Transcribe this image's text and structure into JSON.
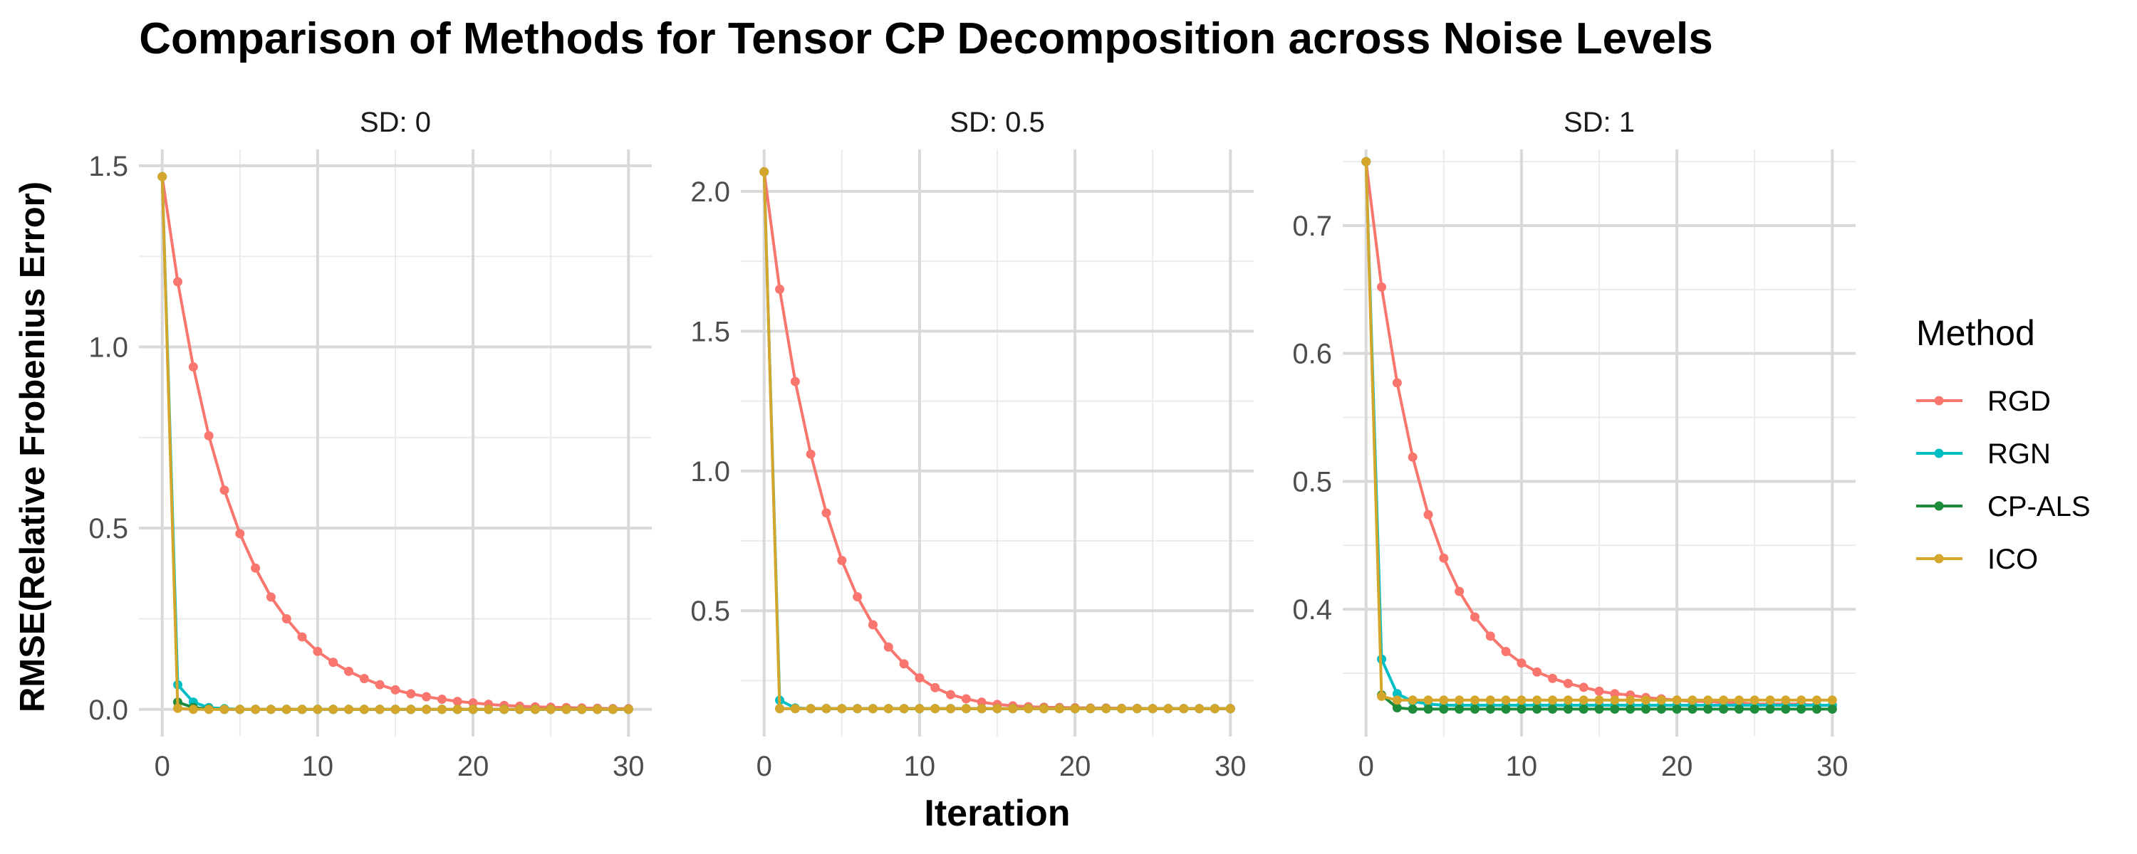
{
  "title": "Comparison of Methods for Tensor CP Decomposition across Noise Levels",
  "xlabel": "Iteration",
  "ylabel": "RMSE(Relative Frobenius Error)",
  "legend": {
    "title": "Method",
    "position": "right",
    "items": [
      {
        "name": "RGD",
        "color": "#F8766D"
      },
      {
        "name": "RGN",
        "color": "#00BFC4"
      },
      {
        "name": "CP-ALS",
        "color": "#1E8C3A"
      },
      {
        "name": "ICO",
        "color": "#D4A72C"
      }
    ]
  },
  "chart_data": [
    {
      "type": "line",
      "title": "SD: 0",
      "xlabel": "Iteration",
      "ylabel": "RMSE(Relative Frobenius Error)",
      "xlim": [
        -1.5,
        31.5
      ],
      "ylim": [
        -0.075,
        1.545
      ],
      "x_ticks": [
        0,
        10,
        20,
        30
      ],
      "x_tick_labels": [
        "0",
        "10",
        "20",
        "30"
      ],
      "y_ticks": [
        0,
        0.5,
        1,
        1.5
      ],
      "y_tick_labels": [
        "0.0",
        "0.5",
        "1.0",
        "1.5"
      ],
      "grid": true,
      "series": [
        {
          "name": "RGD",
          "x": [
            0,
            1,
            2,
            3,
            4,
            5,
            6,
            7,
            8,
            9,
            10,
            11,
            12,
            13,
            14,
            15,
            16,
            17,
            18,
            19,
            20,
            21,
            22,
            23,
            24,
            25,
            26,
            27,
            28,
            29,
            30
          ],
          "values": [
            1.47,
            1.18,
            0.945,
            0.755,
            0.605,
            0.485,
            0.39,
            0.31,
            0.25,
            0.2,
            0.16,
            0.13,
            0.105,
            0.085,
            0.068,
            0.054,
            0.043,
            0.035,
            0.028,
            0.022,
            0.018,
            0.014,
            0.011,
            0.009,
            0.007,
            0.006,
            0.005,
            0.004,
            0.003,
            0.002,
            0.002
          ]
        },
        {
          "name": "RGN",
          "x": [
            0,
            1,
            2,
            3,
            4,
            5,
            6,
            7,
            8,
            9,
            10,
            11,
            12,
            13,
            14,
            15,
            16,
            17,
            18,
            19,
            20,
            21,
            22,
            23,
            24,
            25,
            26,
            27,
            28,
            29,
            30
          ],
          "values": [
            1.47,
            0.068,
            0.02,
            0.005,
            0.002,
            0,
            0,
            0,
            0,
            0,
            0,
            0,
            0,
            0,
            0,
            0,
            0,
            0,
            0,
            0,
            0,
            0,
            0,
            0,
            0,
            0,
            0,
            0,
            0,
            0,
            0
          ]
        },
        {
          "name": "CP-ALS",
          "x": [
            1,
            2,
            3,
            4,
            5,
            6,
            7,
            8,
            9,
            10,
            11,
            12,
            13,
            14,
            15,
            16,
            17,
            18,
            19,
            20,
            21,
            22,
            23,
            24,
            25,
            26,
            27,
            28,
            29,
            30
          ],
          "values": [
            0.02,
            0.005,
            0.001,
            0,
            0,
            0,
            0,
            0,
            0,
            0,
            0,
            0,
            0,
            0,
            0,
            0,
            0,
            0,
            0,
            0,
            0,
            0,
            0,
            0,
            0,
            0,
            0,
            0,
            0,
            0
          ]
        },
        {
          "name": "ICO",
          "x": [
            0,
            1,
            2,
            3,
            4,
            5,
            6,
            7,
            8,
            9,
            10,
            11,
            12,
            13,
            14,
            15,
            16,
            17,
            18,
            19,
            20,
            21,
            22,
            23,
            24,
            25,
            26,
            27,
            28,
            29,
            30
          ],
          "values": [
            1.47,
            0.003,
            0,
            0,
            0,
            0,
            0,
            0,
            0,
            0,
            0,
            0,
            0,
            0,
            0,
            0,
            0,
            0,
            0,
            0,
            0,
            0,
            0,
            0,
            0,
            0,
            0,
            0,
            0,
            0,
            0
          ]
        }
      ]
    },
    {
      "type": "line",
      "title": "SD: 0.5",
      "xlabel": "Iteration",
      "ylabel": "RMSE(Relative Frobenius Error)",
      "xlim": [
        -1.5,
        31.5
      ],
      "ylim": [
        0.05,
        2.15
      ],
      "x_ticks": [
        0,
        10,
        20,
        30
      ],
      "x_tick_labels": [
        "0",
        "10",
        "20",
        "30"
      ],
      "y_ticks": [
        0.5,
        1,
        1.5,
        2
      ],
      "y_tick_labels": [
        "0.5",
        "1.0",
        "1.5",
        "2.0"
      ],
      "grid": true,
      "series": [
        {
          "name": "RGD",
          "x": [
            0,
            1,
            2,
            3,
            4,
            5,
            6,
            7,
            8,
            9,
            10,
            11,
            12,
            13,
            14,
            15,
            16,
            17,
            18,
            19,
            20,
            21,
            22,
            23,
            24,
            25,
            26,
            27,
            28,
            29,
            30
          ],
          "values": [
            2.07,
            1.65,
            1.32,
            1.06,
            0.85,
            0.68,
            0.55,
            0.45,
            0.37,
            0.31,
            0.26,
            0.225,
            0.2,
            0.185,
            0.173,
            0.165,
            0.16,
            0.157,
            0.155,
            0.154,
            0.153,
            0.152,
            0.152,
            0.151,
            0.151,
            0.15,
            0.15,
            0.15,
            0.15,
            0.15,
            0.15
          ]
        },
        {
          "name": "RGN",
          "x": [
            0,
            1,
            2,
            3,
            4,
            5,
            6,
            7,
            8,
            9,
            10,
            11,
            12,
            13,
            14,
            15,
            16,
            17,
            18,
            19,
            20,
            21,
            22,
            23,
            24,
            25,
            26,
            27,
            28,
            29,
            30
          ],
          "values": [
            2.07,
            0.18,
            0.152,
            0.15,
            0.15,
            0.15,
            0.15,
            0.15,
            0.15,
            0.15,
            0.15,
            0.15,
            0.15,
            0.15,
            0.15,
            0.15,
            0.15,
            0.15,
            0.15,
            0.15,
            0.15,
            0.15,
            0.15,
            0.15,
            0.15,
            0.15,
            0.15,
            0.15,
            0.15,
            0.15,
            0.15
          ]
        },
        {
          "name": "CP-ALS",
          "x": [
            1,
            2,
            3,
            4,
            5,
            6,
            7,
            8,
            9,
            10,
            11,
            12,
            13,
            14,
            15,
            16,
            17,
            18,
            19,
            20,
            21,
            22,
            23,
            24,
            25,
            26,
            27,
            28,
            29,
            30
          ],
          "values": [
            0.15,
            0.15,
            0.15,
            0.15,
            0.15,
            0.15,
            0.15,
            0.15,
            0.15,
            0.15,
            0.15,
            0.15,
            0.15,
            0.15,
            0.15,
            0.15,
            0.15,
            0.15,
            0.15,
            0.15,
            0.15,
            0.15,
            0.15,
            0.15,
            0.15,
            0.15,
            0.15,
            0.15,
            0.15,
            0.15
          ]
        },
        {
          "name": "ICO",
          "x": [
            0,
            1,
            2,
            3,
            4,
            5,
            6,
            7,
            8,
            9,
            10,
            11,
            12,
            13,
            14,
            15,
            16,
            17,
            18,
            19,
            20,
            21,
            22,
            23,
            24,
            25,
            26,
            27,
            28,
            29,
            30
          ],
          "values": [
            2.07,
            0.15,
            0.15,
            0.15,
            0.15,
            0.15,
            0.15,
            0.15,
            0.15,
            0.15,
            0.15,
            0.15,
            0.15,
            0.15,
            0.15,
            0.15,
            0.15,
            0.15,
            0.15,
            0.15,
            0.15,
            0.15,
            0.15,
            0.15,
            0.15,
            0.15,
            0.15,
            0.15,
            0.15,
            0.15,
            0.15
          ]
        }
      ]
    },
    {
      "type": "line",
      "title": "SD: 1",
      "xlabel": "Iteration",
      "ylabel": "RMSE(Relative Frobenius Error)",
      "xlim": [
        -1.5,
        31.5
      ],
      "ylim": [
        0.3005,
        0.7595
      ],
      "x_ticks": [
        0,
        10,
        20,
        30
      ],
      "x_tick_labels": [
        "0",
        "10",
        "20",
        "30"
      ],
      "y_ticks": [
        0.4,
        0.5,
        0.6,
        0.7
      ],
      "y_tick_labels": [
        "0.4",
        "0.5",
        "0.6",
        "0.7"
      ],
      "grid": true,
      "series": [
        {
          "name": "RGD",
          "x": [
            0,
            1,
            2,
            3,
            4,
            5,
            6,
            7,
            8,
            9,
            10,
            11,
            12,
            13,
            14,
            15,
            16,
            17,
            18,
            19,
            20,
            21,
            22,
            23,
            24,
            25,
            26,
            27,
            28,
            29,
            30
          ],
          "values": [
            0.75,
            0.652,
            0.577,
            0.519,
            0.474,
            0.44,
            0.414,
            0.394,
            0.379,
            0.367,
            0.358,
            0.351,
            0.346,
            0.342,
            0.339,
            0.336,
            0.334,
            0.333,
            0.331,
            0.33,
            0.329,
            0.328,
            0.328,
            0.327,
            0.327,
            0.326,
            0.326,
            0.326,
            0.326,
            0.325,
            0.325
          ]
        },
        {
          "name": "RGN",
          "x": [
            0,
            1,
            2,
            3,
            4,
            5,
            6,
            7,
            8,
            9,
            10,
            11,
            12,
            13,
            14,
            15,
            16,
            17,
            18,
            19,
            20,
            21,
            22,
            23,
            24,
            25,
            26,
            27,
            28,
            29,
            30
          ],
          "values": [
            0.75,
            0.361,
            0.334,
            0.328,
            0.326,
            0.325,
            0.325,
            0.325,
            0.325,
            0.325,
            0.325,
            0.325,
            0.325,
            0.325,
            0.325,
            0.325,
            0.325,
            0.325,
            0.325,
            0.325,
            0.325,
            0.325,
            0.325,
            0.325,
            0.325,
            0.325,
            0.325,
            0.325,
            0.325,
            0.325,
            0.325
          ]
        },
        {
          "name": "CP-ALS",
          "x": [
            1,
            2,
            3,
            4,
            5,
            6,
            7,
            8,
            9,
            10,
            11,
            12,
            13,
            14,
            15,
            16,
            17,
            18,
            19,
            20,
            21,
            22,
            23,
            24,
            25,
            26,
            27,
            28,
            29,
            30
          ],
          "values": [
            0.333,
            0.323,
            0.322,
            0.322,
            0.322,
            0.322,
            0.322,
            0.322,
            0.322,
            0.322,
            0.322,
            0.322,
            0.322,
            0.322,
            0.322,
            0.322,
            0.322,
            0.322,
            0.322,
            0.322,
            0.322,
            0.322,
            0.322,
            0.322,
            0.322,
            0.322,
            0.322,
            0.322,
            0.322,
            0.322
          ]
        },
        {
          "name": "ICO",
          "x": [
            0,
            1,
            2,
            3,
            4,
            5,
            6,
            7,
            8,
            9,
            10,
            11,
            12,
            13,
            14,
            15,
            16,
            17,
            18,
            19,
            20,
            21,
            22,
            23,
            24,
            25,
            26,
            27,
            28,
            29,
            30
          ],
          "values": [
            0.75,
            0.332,
            0.329,
            0.329,
            0.329,
            0.329,
            0.329,
            0.329,
            0.329,
            0.329,
            0.329,
            0.329,
            0.329,
            0.329,
            0.329,
            0.329,
            0.329,
            0.329,
            0.329,
            0.329,
            0.329,
            0.329,
            0.329,
            0.329,
            0.329,
            0.329,
            0.329,
            0.329,
            0.329,
            0.329,
            0.329
          ]
        }
      ]
    }
  ]
}
